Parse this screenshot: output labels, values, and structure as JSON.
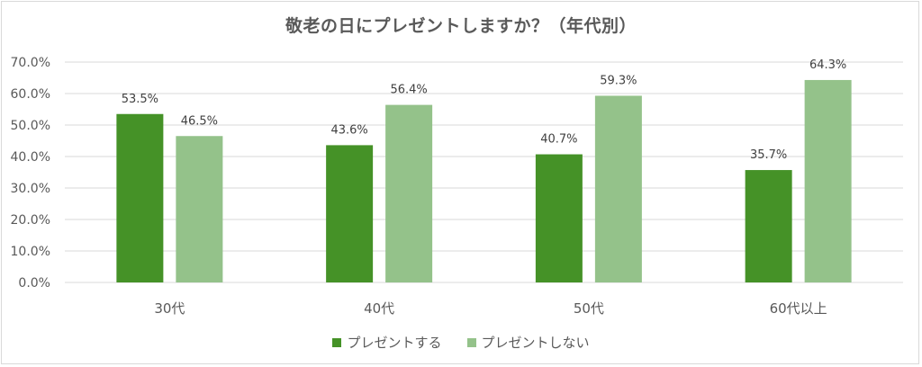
{
  "colors": {
    "series1": "#459227",
    "series2": "#94c28a",
    "grid": "#d9d9d9",
    "text": "#595959"
  },
  "chart_data": {
    "type": "bar",
    "title": "敬老の日にプレゼントしますか？（年代別）",
    "categories": [
      "30代",
      "40代",
      "50代",
      "60代以上"
    ],
    "series": [
      {
        "name": "プレゼントする",
        "values": [
          53.5,
          43.6,
          40.7,
          35.7
        ]
      },
      {
        "name": "プレゼントしない",
        "values": [
          46.5,
          56.4,
          59.3,
          64.3
        ]
      }
    ],
    "data_labels": [
      [
        "53.5%",
        "43.6%",
        "40.7%",
        "35.7%"
      ],
      [
        "46.5%",
        "56.4%",
        "59.3%",
        "64.3%"
      ]
    ],
    "yticks": [
      "0.0%",
      "10.0%",
      "20.0%",
      "30.0%",
      "40.0%",
      "50.0%",
      "60.0%",
      "70.0%"
    ],
    "ylim": [
      0,
      70
    ],
    "grid": true,
    "legend_position": "bottom"
  }
}
